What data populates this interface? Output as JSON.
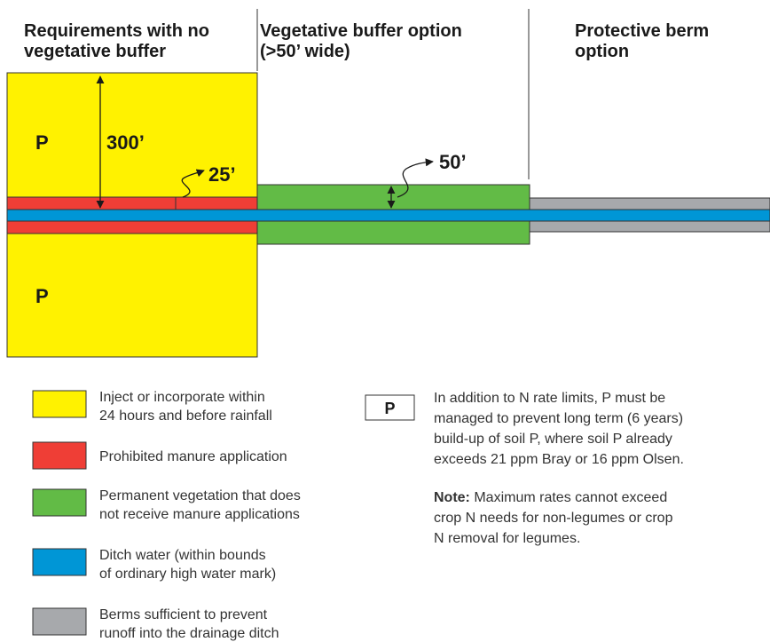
{
  "headers": [
    {
      "lines": [
        "Requirements with no",
        "vegetative buffer"
      ]
    },
    {
      "lines": [
        "Vegetative buffer option",
        "(>50’ wide)"
      ]
    },
    {
      "lines": [
        "Protective berm",
        "option"
      ]
    }
  ],
  "labels": {
    "p_top": "P",
    "p_bottom": "P",
    "dist_300": "300’",
    "dist_25": "25’",
    "dist_50": "50’"
  },
  "legend": [
    {
      "lines": [
        "Inject or incorporate within",
        "24 hours and before rainfall"
      ]
    },
    {
      "lines": [
        "Prohibited manure application"
      ]
    },
    {
      "lines": [
        "Permanent vegetation that does",
        "not receive manure applications"
      ]
    },
    {
      "lines": [
        "Ditch water (within bounds",
        "of ordinary high water mark)"
      ]
    },
    {
      "lines": [
        "Berms sufficient to prevent",
        "runoff into the drainage ditch"
      ]
    }
  ],
  "p_box": {
    "symbol": "P",
    "lines": [
      "In addition to N rate limits, P must be",
      "managed to prevent long term (6 years)",
      "build-up of soil P, where soil P already",
      "exceeds 21 ppm Bray or 16 ppm Olsen."
    ]
  },
  "note": {
    "label": "Note:",
    "lines": [
      " Maximum rates cannot exceed",
      "crop N needs for non-legumes or crop",
      "N removal for legumes."
    ]
  }
}
